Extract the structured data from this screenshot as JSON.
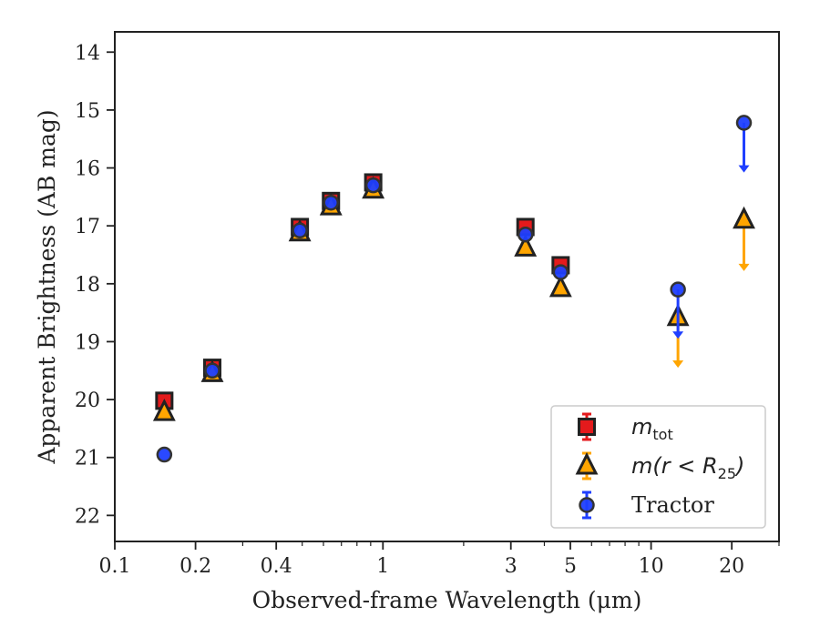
{
  "chart_data": {
    "type": "scatter",
    "title": "",
    "xlabel": "Observed-frame Wavelength (μm)",
    "ylabel": "Apparent Brightness (AB mag)",
    "xscale": "log",
    "xlim": [
      0.1,
      30
    ],
    "ylim": [
      22.45,
      13.65
    ],
    "y_inverted": true,
    "x_ticks": [
      0.1,
      0.2,
      0.4,
      1,
      3,
      5,
      10,
      20
    ],
    "x_tick_labels": [
      "0.1",
      "0.2",
      "0.4",
      "1",
      "3",
      "5",
      "10",
      "20"
    ],
    "y_ticks": [
      14,
      15,
      16,
      17,
      18,
      19,
      20,
      21,
      22
    ],
    "y_tick_labels": [
      "14",
      "15",
      "16",
      "17",
      "18",
      "19",
      "20",
      "21",
      "22"
    ],
    "grid": false,
    "legend_position": "lower-right",
    "series": [
      {
        "name": "m_tot",
        "legend_main": "m",
        "legend_sub": "tot",
        "marker": "square",
        "color": "#e41a1c",
        "edge": "#222222",
        "points": [
          {
            "x": 0.153,
            "y": 20.02,
            "upper_limit": false
          },
          {
            "x": 0.231,
            "y": 19.45,
            "upper_limit": false
          },
          {
            "x": 0.49,
            "y": 17.02,
            "upper_limit": false
          },
          {
            "x": 0.64,
            "y": 16.57,
            "upper_limit": false
          },
          {
            "x": 0.92,
            "y": 16.25,
            "upper_limit": false
          },
          {
            "x": 3.4,
            "y": 17.02,
            "upper_limit": false
          },
          {
            "x": 4.6,
            "y": 17.68,
            "upper_limit": false
          }
        ]
      },
      {
        "name": "m(r < R25)",
        "legend_main": "m(r < R",
        "legend_sub": "25",
        "legend_close": ")",
        "marker": "triangle",
        "color": "#ffa500",
        "edge": "#222222",
        "points": [
          {
            "x": 0.153,
            "y": 20.22,
            "upper_limit": false
          },
          {
            "x": 0.231,
            "y": 19.55,
            "upper_limit": false
          },
          {
            "x": 0.49,
            "y": 17.12,
            "upper_limit": false
          },
          {
            "x": 0.64,
            "y": 16.67,
            "upper_limit": false
          },
          {
            "x": 0.92,
            "y": 16.38,
            "upper_limit": false
          },
          {
            "x": 3.4,
            "y": 17.38,
            "upper_limit": false
          },
          {
            "x": 4.6,
            "y": 18.08,
            "upper_limit": false
          },
          {
            "x": 12.6,
            "y": 18.58,
            "upper_limit": true,
            "limit_to": 19.45
          },
          {
            "x": 22.2,
            "y": 16.9,
            "upper_limit": true,
            "limit_to": 17.78
          }
        ]
      },
      {
        "name": "Tractor",
        "marker": "circle",
        "color": "#1f3fff",
        "edge": "#333333",
        "points": [
          {
            "x": 0.153,
            "y": 20.95,
            "upper_limit": false
          },
          {
            "x": 0.231,
            "y": 19.5,
            "upper_limit": false
          },
          {
            "x": 0.49,
            "y": 17.08,
            "upper_limit": false
          },
          {
            "x": 0.64,
            "y": 16.6,
            "upper_limit": false
          },
          {
            "x": 0.92,
            "y": 16.3,
            "upper_limit": false
          },
          {
            "x": 3.4,
            "y": 17.15,
            "upper_limit": false
          },
          {
            "x": 4.6,
            "y": 17.8,
            "upper_limit": false
          },
          {
            "x": 12.6,
            "y": 18.1,
            "upper_limit": true,
            "limit_to": 18.95
          },
          {
            "x": 22.2,
            "y": 15.22,
            "upper_limit": true,
            "limit_to": 16.08
          }
        ]
      }
    ]
  }
}
